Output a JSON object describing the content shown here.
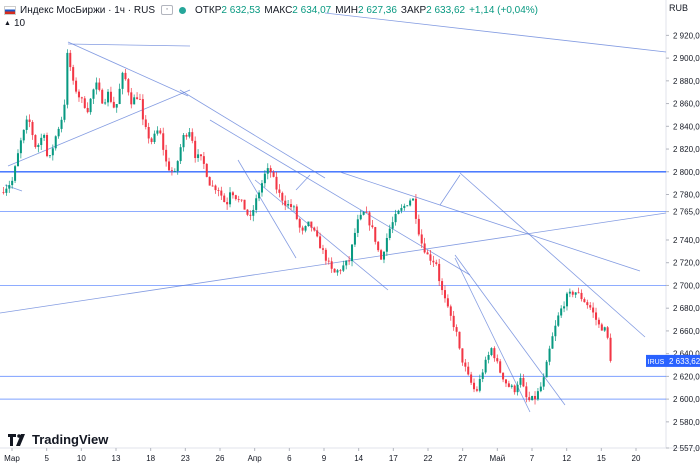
{
  "header": {
    "symbol": "Индекс МосБиржи · 1ч · RUS",
    "open_label": "ОТКР",
    "open_value": "2 632,53",
    "high_label": "МАКС",
    "high_value": "2 634,07",
    "low_label": "МИН",
    "low_value": "2 627,36",
    "close_label": "ЗАКР",
    "close_value": "2 633,62",
    "change_value": "+1,14 (+0,04%)"
  },
  "indicator": {
    "label": "10"
  },
  "currency": "RUB",
  "brand": "TradingView",
  "last_price_tag": {
    "symbol": "IRUS",
    "price": "2 633,62"
  },
  "colors": {
    "up": "#089981",
    "down": "#f23645",
    "level": "#2962ff",
    "trend": "#5b7bd8"
  },
  "chart_data": {
    "type": "candlestick",
    "interval": "1h",
    "ylim": [
      2557,
      2930
    ],
    "y_ticks": [
      {
        "v": 2557,
        "label": "2 557,00"
      },
      {
        "v": 2580,
        "label": "2 580,00"
      },
      {
        "v": 2600,
        "label": "2 600,00"
      },
      {
        "v": 2620,
        "label": "2 620,00"
      },
      {
        "v": 2640,
        "label": "2 640,00"
      },
      {
        "v": 2660,
        "label": "2 660,00"
      },
      {
        "v": 2680,
        "label": "2 680,00"
      },
      {
        "v": 2700,
        "label": "2 700,00"
      },
      {
        "v": 2720,
        "label": "2 720,00"
      },
      {
        "v": 2740,
        "label": "2 740,00"
      },
      {
        "v": 2765,
        "label": "2 765,00"
      },
      {
        "v": 2780,
        "label": "2 780,00"
      },
      {
        "v": 2800,
        "label": "2 800,00"
      },
      {
        "v": 2820,
        "label": "2 820,00"
      },
      {
        "v": 2840,
        "label": "2 840,00"
      },
      {
        "v": 2860,
        "label": "2 860,00"
      },
      {
        "v": 2880,
        "label": "2 880,00"
      },
      {
        "v": 2900,
        "label": "2 900,00"
      },
      {
        "v": 2920,
        "label": "2 920,00"
      }
    ],
    "x_labels": [
      "Мар",
      "5",
      "10",
      "13",
      "18",
      "23",
      "26",
      "Апр",
      "6",
      "9",
      "14",
      "17",
      "22",
      "27",
      "Май",
      "7",
      "12",
      "15",
      "20"
    ],
    "horizontal_levels": [
      2800,
      2765,
      2700,
      2620,
      2600
    ],
    "last_price": 2633.62,
    "path": [
      [
        0,
        2782
      ],
      [
        3,
        2792
      ],
      [
        5,
        2825
      ],
      [
        7,
        2848
      ],
      [
        9,
        2820
      ],
      [
        11,
        2835
      ],
      [
        12,
        2806
      ],
      [
        14,
        2832
      ],
      [
        16,
        2853
      ],
      [
        17,
        2910
      ],
      [
        18,
        2880
      ],
      [
        20,
        2865
      ],
      [
        22,
        2855
      ],
      [
        24,
        2878
      ],
      [
        26,
        2860
      ],
      [
        27,
        2870
      ],
      [
        29,
        2854
      ],
      [
        31,
        2888
      ],
      [
        33,
        2862
      ],
      [
        35,
        2868
      ],
      [
        36,
        2842
      ],
      [
        38,
        2826
      ],
      [
        40,
        2838
      ],
      [
        42,
        2805
      ],
      [
        44,
        2798
      ],
      [
        46,
        2830
      ],
      [
        48,
        2838
      ],
      [
        49,
        2815
      ],
      [
        51,
        2810
      ],
      [
        53,
        2788
      ],
      [
        55,
        2785
      ],
      [
        57,
        2770
      ],
      [
        58,
        2785
      ],
      [
        60,
        2775
      ],
      [
        61,
        2772
      ],
      [
        63,
        2758
      ],
      [
        65,
        2780
      ],
      [
        67,
        2800
      ],
      [
        68,
        2802
      ],
      [
        70,
        2782
      ],
      [
        72,
        2772
      ],
      [
        74,
        2768
      ],
      [
        76,
        2745
      ],
      [
        78,
        2755
      ],
      [
        80,
        2740
      ],
      [
        82,
        2725
      ],
      [
        84,
        2710
      ],
      [
        86,
        2715
      ],
      [
        88,
        2722
      ],
      [
        90,
        2755
      ],
      [
        92,
        2765
      ],
      [
        94,
        2748
      ],
      [
        96,
        2722
      ],
      [
        98,
        2748
      ],
      [
        100,
        2762
      ],
      [
        102,
        2770
      ],
      [
        104,
        2778
      ],
      [
        106,
        2740
      ],
      [
        108,
        2725
      ],
      [
        110,
        2720
      ],
      [
        111,
        2700
      ],
      [
        113,
        2678
      ],
      [
        115,
        2660
      ],
      [
        116,
        2640
      ],
      [
        118,
        2620
      ],
      [
        120,
        2605
      ],
      [
        122,
        2628
      ],
      [
        124,
        2645
      ],
      [
        126,
        2625
      ],
      [
        128,
        2612
      ],
      [
        130,
        2608
      ],
      [
        131,
        2620
      ],
      [
        133,
        2598
      ],
      [
        135,
        2601
      ],
      [
        137,
        2615
      ],
      [
        139,
        2650
      ],
      [
        141,
        2675
      ],
      [
        143,
        2690
      ],
      [
        145,
        2695
      ],
      [
        147,
        2688
      ],
      [
        149,
        2680
      ],
      [
        151,
        2665
      ],
      [
        153,
        2660
      ],
      [
        154,
        2633.62
      ]
    ]
  }
}
